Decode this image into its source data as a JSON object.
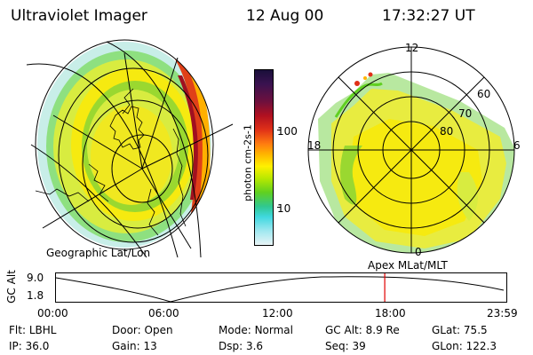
{
  "header": {
    "title": "Ultraviolet Imager",
    "date": "12 Aug 00",
    "time": "17:32:27 UT"
  },
  "colorbar": {
    "unit_label": "photon cm-2s-1",
    "ticks": [
      "100",
      "10"
    ],
    "colors": [
      "#1a0f3a",
      "#3a1250",
      "#6e103d",
      "#b01020",
      "#e03018",
      "#ff7a10",
      "#ffb400",
      "#fff000",
      "#b8e800",
      "#60d020",
      "#30c890",
      "#40d8e0",
      "#a0e8f0",
      "#e8f4f6"
    ]
  },
  "geo_map": {
    "caption": "Geographic Lat/Lon"
  },
  "polar_plot": {
    "caption": "Apex  MLat/MLT",
    "mlt_labels": [
      "12",
      "18",
      "6",
      "0"
    ],
    "lat_labels": [
      "60",
      "70",
      "80"
    ]
  },
  "altitude_strip": {
    "axis_label": "GC Alt",
    "y_ticks": [
      "9.0",
      "1.8"
    ],
    "x_ticks": [
      "00:00",
      "06:00",
      "12:00",
      "18:00",
      "23:59"
    ],
    "current_time_fraction": 0.73
  },
  "status": {
    "row1": [
      {
        "label": "Flt:",
        "value": "LBHL"
      },
      {
        "label": "Door:",
        "value": "Open"
      },
      {
        "label": "Mode:",
        "value": "Normal"
      },
      {
        "label": "GC Alt:",
        "value": "8.9 Re"
      },
      {
        "label": "GLat:",
        "value": "75.5"
      }
    ],
    "row2": [
      {
        "label": "IP:",
        "value": "36.0"
      },
      {
        "label": "Gain:",
        "value": "13"
      },
      {
        "label": "Dsp:",
        "value": "3.6"
      },
      {
        "label": "Seq:",
        "value": "39"
      },
      {
        "label": "GLon:",
        "value": "122.3"
      }
    ]
  }
}
